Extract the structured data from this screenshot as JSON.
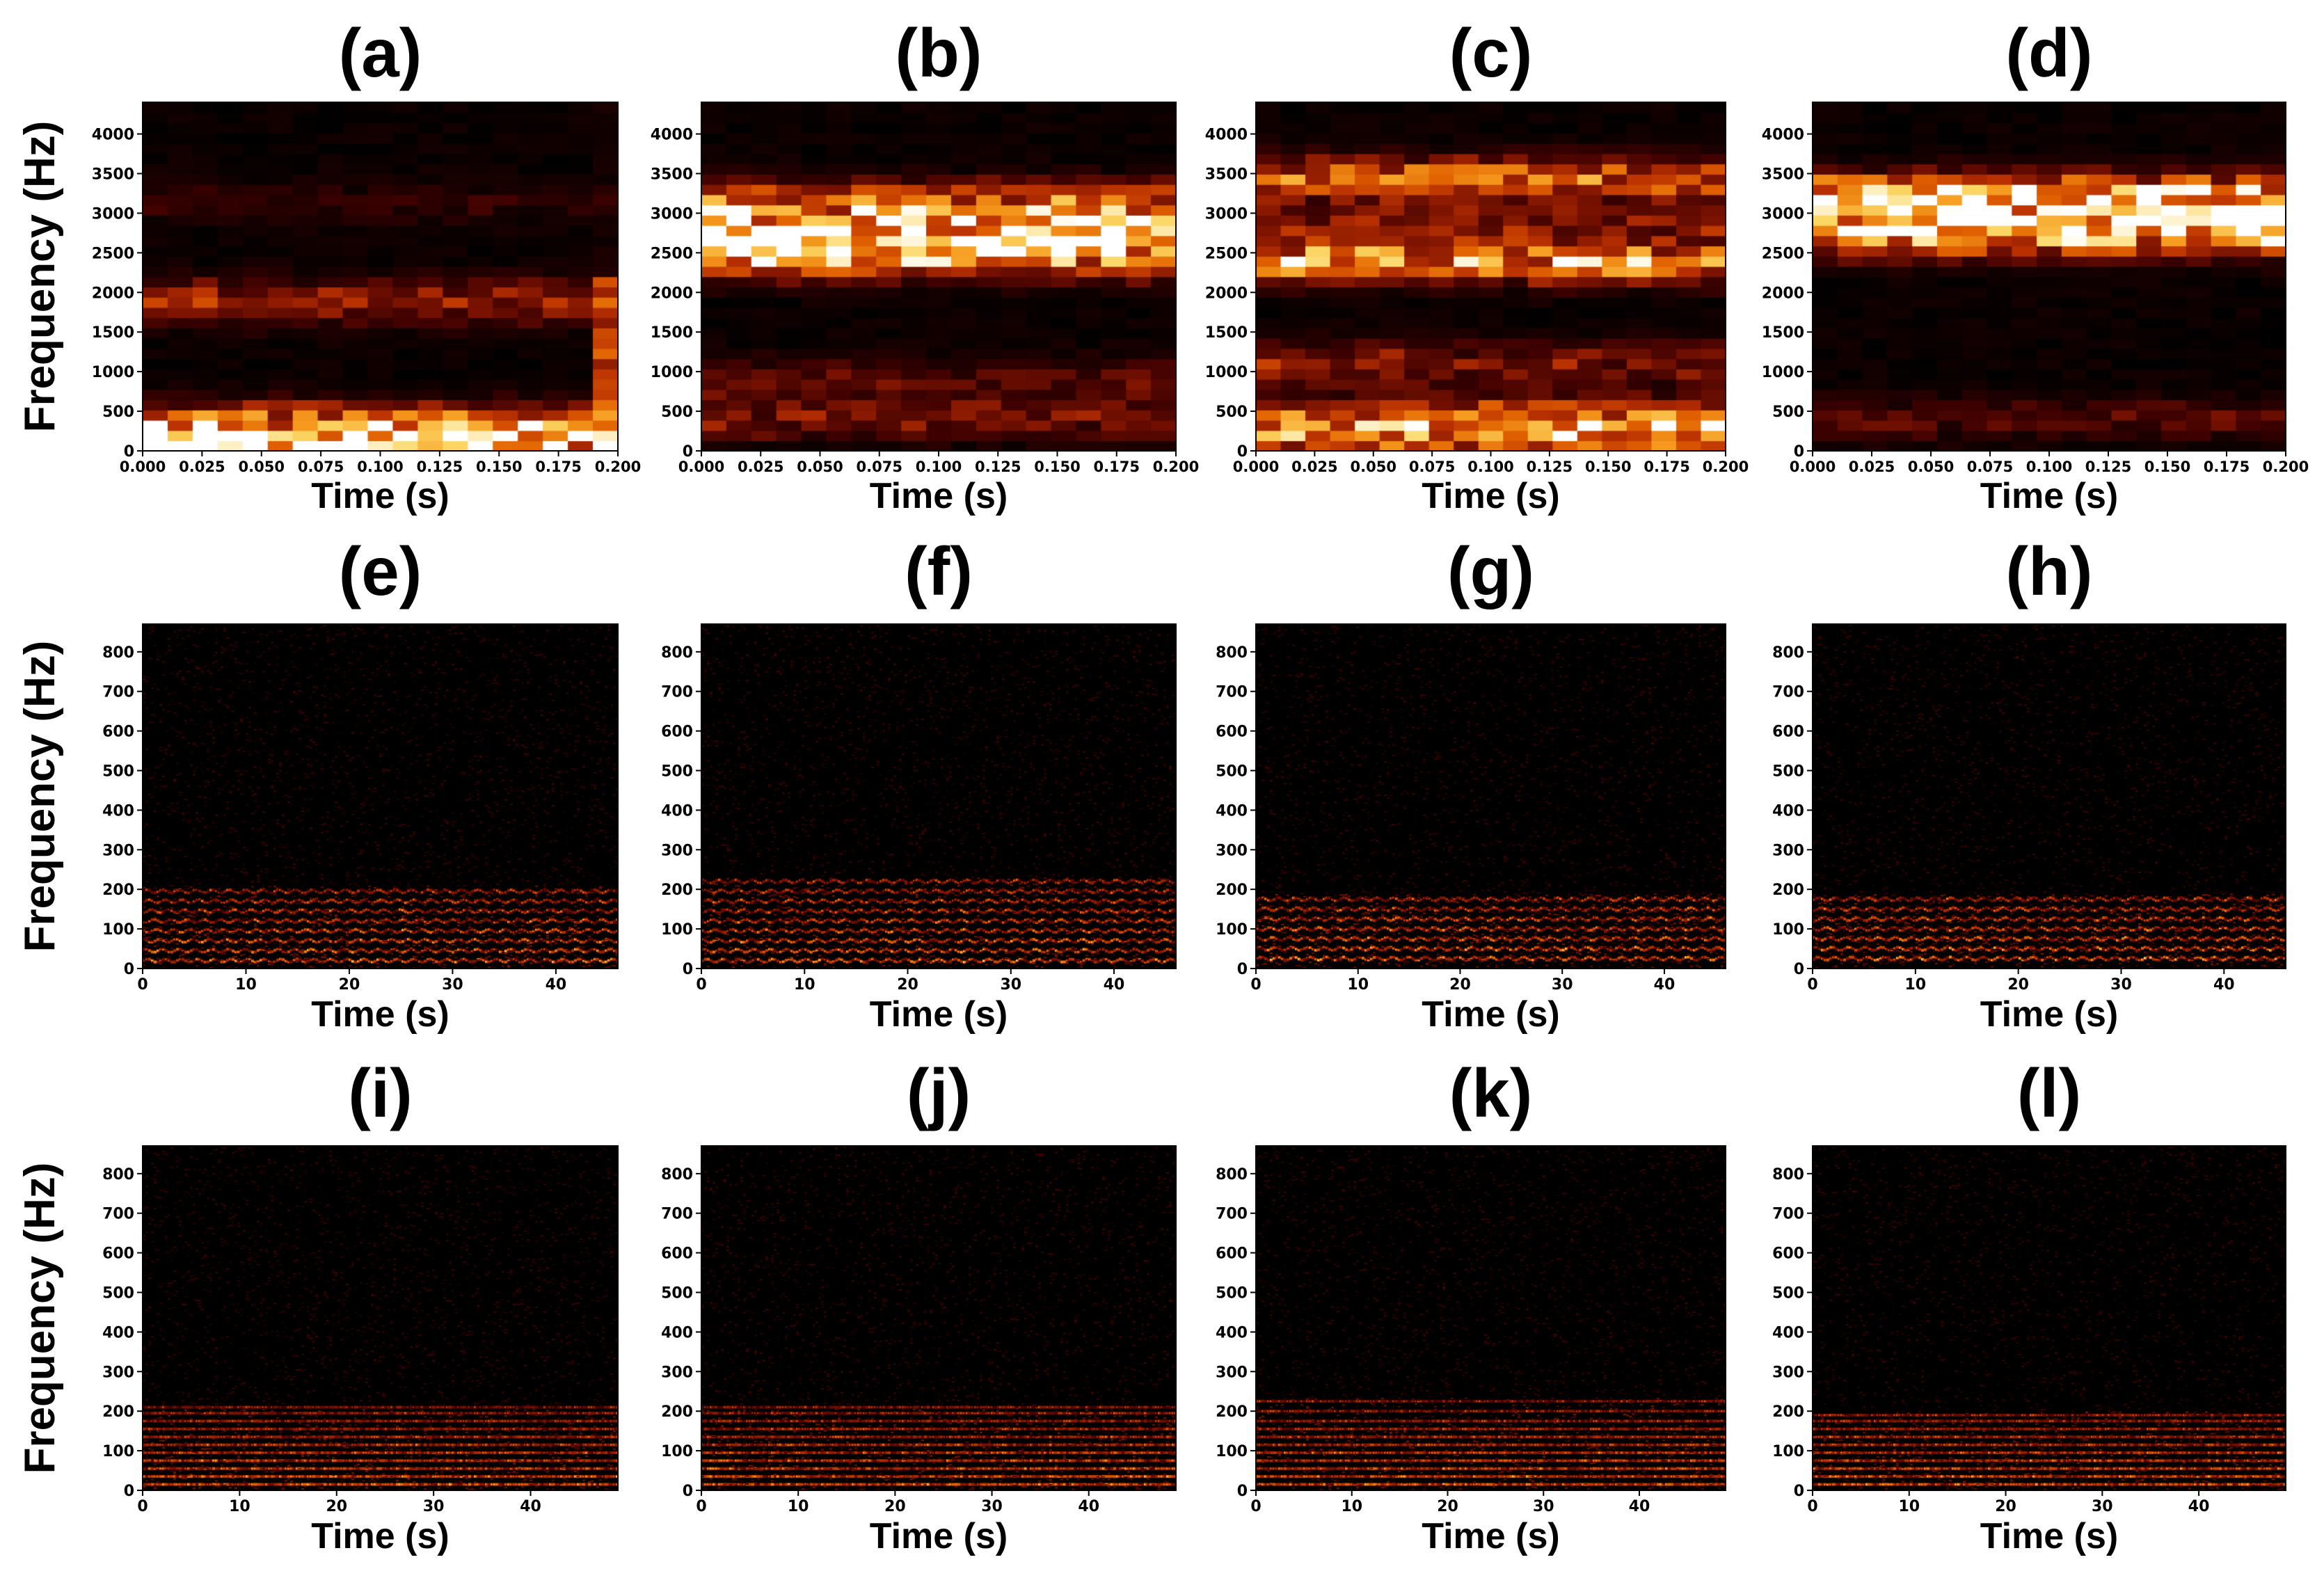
{
  "chart_data": [
    {
      "id": "a",
      "title": "(a)",
      "type": "heatmap",
      "xlabel": "Time (s)",
      "ylabel": "Frequency (Hz)",
      "xlim": [
        0,
        0.2
      ],
      "ylim": [
        0,
        4400
      ],
      "xticks": [
        "0.000",
        "0.025",
        "0.050",
        "0.075",
        "0.100",
        "0.125",
        "0.150",
        "0.175",
        "0.200"
      ],
      "yticks": [
        "0",
        "500",
        "1000",
        "1500",
        "2000",
        "2500",
        "3000",
        "3500",
        "4000"
      ],
      "bands": [
        {
          "hz": 100,
          "level": 0.85
        },
        {
          "hz": 350,
          "level": 0.55
        },
        {
          "hz": 1900,
          "level": 0.4
        },
        {
          "hz": 3150,
          "level": 0.1
        }
      ],
      "edge_burst": {
        "t": 0.197,
        "level": 0.6
      }
    },
    {
      "id": "b",
      "title": "(b)",
      "type": "heatmap",
      "xlabel": "Time (s)",
      "ylabel": "",
      "xlim": [
        0,
        0.2
      ],
      "ylim": [
        0,
        4400
      ],
      "xticks": [
        "0.000",
        "0.025",
        "0.050",
        "0.075",
        "0.100",
        "0.125",
        "0.150",
        "0.175",
        "0.200"
      ],
      "yticks": [
        "0",
        "500",
        "1000",
        "1500",
        "2000",
        "2500",
        "3000",
        "3500",
        "4000"
      ],
      "bands": [
        {
          "hz": 2450,
          "level": 0.75
        },
        {
          "hz": 2800,
          "level": 0.85
        },
        {
          "hz": 3150,
          "level": 0.55
        },
        {
          "hz": 400,
          "level": 0.3
        },
        {
          "hz": 900,
          "level": 0.2
        }
      ]
    },
    {
      "id": "c",
      "title": "(c)",
      "type": "heatmap",
      "xlabel": "Time (s)",
      "ylabel": "",
      "xlim": [
        0,
        0.2
      ],
      "ylim": [
        0,
        4400
      ],
      "xticks": [
        "0.000",
        "0.025",
        "0.050",
        "0.075",
        "0.100",
        "0.125",
        "0.150",
        "0.175",
        "0.200"
      ],
      "yticks": [
        "0",
        "500",
        "1000",
        "1500",
        "2000",
        "2500",
        "3000",
        "3500",
        "4000"
      ],
      "bands": [
        {
          "hz": 2400,
          "level": 0.75
        },
        {
          "hz": 3450,
          "level": 0.6
        },
        {
          "hz": 2900,
          "level": 0.3
        },
        {
          "hz": 1100,
          "level": 0.35
        },
        {
          "hz": 400,
          "level": 0.6
        },
        {
          "hz": 150,
          "level": 0.5
        }
      ]
    },
    {
      "id": "d",
      "title": "(d)",
      "type": "heatmap",
      "xlabel": "Time (s)",
      "ylabel": "",
      "xlim": [
        0,
        0.2
      ],
      "ylim": [
        0,
        4400
      ],
      "xticks": [
        "0.000",
        "0.025",
        "0.050",
        "0.075",
        "0.100",
        "0.125",
        "0.150",
        "0.175",
        "0.200"
      ],
      "yticks": [
        "0",
        "500",
        "1000",
        "1500",
        "2000",
        "2500",
        "3000",
        "3500",
        "4000"
      ],
      "bands": [
        {
          "hz": 3250,
          "level": 0.75
        },
        {
          "hz": 2700,
          "level": 0.65
        },
        {
          "hz": 2950,
          "level": 0.6
        },
        {
          "hz": 400,
          "level": 0.2
        }
      ]
    },
    {
      "id": "e",
      "title": "(e)",
      "type": "heatmap",
      "xlabel": "Time (s)",
      "ylabel": "Frequency (Hz)",
      "xlim": [
        0,
        46
      ],
      "ylim": [
        0,
        870
      ],
      "xticks": [
        "0",
        "10",
        "20",
        "30",
        "40"
      ],
      "yticks": [
        "0",
        "100",
        "200",
        "300",
        "400",
        "500",
        "600",
        "700",
        "800"
      ],
      "harmonics_hz": [
        20,
        45,
        70,
        95,
        120,
        145,
        170,
        195
      ],
      "max_hz": 210
    },
    {
      "id": "f",
      "title": "(f)",
      "type": "heatmap",
      "xlabel": "Time (s)",
      "ylabel": "",
      "xlim": [
        0,
        46
      ],
      "ylim": [
        0,
        870
      ],
      "xticks": [
        "0",
        "10",
        "20",
        "30",
        "40"
      ],
      "yticks": [
        "0",
        "100",
        "200",
        "300",
        "400",
        "500",
        "600",
        "700",
        "800"
      ],
      "harmonics_hz": [
        20,
        45,
        70,
        95,
        120,
        145,
        170,
        195,
        220
      ],
      "max_hz": 230
    },
    {
      "id": "g",
      "title": "(g)",
      "type": "heatmap",
      "xlabel": "Time (s)",
      "ylabel": "",
      "xlim": [
        0,
        46
      ],
      "ylim": [
        0,
        870
      ],
      "xticks": [
        "0",
        "10",
        "20",
        "30",
        "40"
      ],
      "yticks": [
        "0",
        "100",
        "200",
        "300",
        "400",
        "500",
        "600",
        "700",
        "800"
      ],
      "harmonics_hz": [
        25,
        50,
        75,
        100,
        125,
        150,
        175
      ],
      "max_hz": 190
    },
    {
      "id": "h",
      "title": "(h)",
      "type": "heatmap",
      "xlabel": "Time (s)",
      "ylabel": "",
      "xlim": [
        0,
        46
      ],
      "ylim": [
        0,
        870
      ],
      "xticks": [
        "0",
        "10",
        "20",
        "30",
        "40"
      ],
      "yticks": [
        "0",
        "100",
        "200",
        "300",
        "400",
        "500",
        "600",
        "700",
        "800"
      ],
      "harmonics_hz": [
        25,
        50,
        75,
        100,
        125,
        150,
        175
      ],
      "max_hz": 190
    },
    {
      "id": "i",
      "title": "(i)",
      "type": "heatmap",
      "xlabel": "Time (s)",
      "ylabel": "Frequency (Hz)",
      "xlim": [
        0,
        49
      ],
      "ylim": [
        0,
        870
      ],
      "xticks": [
        "0",
        "10",
        "20",
        "30",
        "40"
      ],
      "yticks": [
        "0",
        "100",
        "200",
        "300",
        "400",
        "500",
        "600",
        "700",
        "800"
      ],
      "harmonics_hz": [
        15,
        35,
        55,
        75,
        95,
        115,
        135,
        155,
        175,
        195,
        210
      ],
      "max_hz": 215
    },
    {
      "id": "j",
      "title": "(j)",
      "type": "heatmap",
      "xlabel": "Time (s)",
      "ylabel": "",
      "xlim": [
        0,
        49
      ],
      "ylim": [
        0,
        870
      ],
      "xticks": [
        "0",
        "10",
        "20",
        "30",
        "40"
      ],
      "yticks": [
        "0",
        "100",
        "200",
        "300",
        "400",
        "500",
        "600",
        "700",
        "800"
      ],
      "harmonics_hz": [
        15,
        35,
        55,
        75,
        95,
        115,
        135,
        155,
        175,
        195,
        210
      ],
      "max_hz": 215
    },
    {
      "id": "k",
      "title": "(k)",
      "type": "heatmap",
      "xlabel": "Time (s)",
      "ylabel": "",
      "xlim": [
        0,
        49
      ],
      "ylim": [
        0,
        870
      ],
      "xticks": [
        "0",
        "10",
        "20",
        "30",
        "40"
      ],
      "yticks": [
        "0",
        "100",
        "200",
        "300",
        "400",
        "500",
        "600",
        "700",
        "800"
      ],
      "harmonics_hz": [
        15,
        35,
        55,
        75,
        95,
        115,
        135,
        155,
        175,
        200,
        225
      ],
      "max_hz": 235
    },
    {
      "id": "l",
      "title": "(l)",
      "type": "heatmap",
      "xlabel": "Time (s)",
      "ylabel": "",
      "xlim": [
        0,
        49
      ],
      "ylim": [
        0,
        870
      ],
      "xticks": [
        "0",
        "10",
        "20",
        "30",
        "40"
      ],
      "yticks": [
        "0",
        "100",
        "200",
        "300",
        "400",
        "500",
        "600",
        "700",
        "800"
      ],
      "harmonics_hz": [
        15,
        35,
        55,
        75,
        95,
        115,
        135,
        155,
        175,
        190
      ],
      "max_hz": 200
    }
  ],
  "colormap": [
    "#000000",
    "#3b0000",
    "#7a1200",
    "#b83000",
    "#e06000",
    "#f59a1e",
    "#fcd765",
    "#ffffff"
  ]
}
